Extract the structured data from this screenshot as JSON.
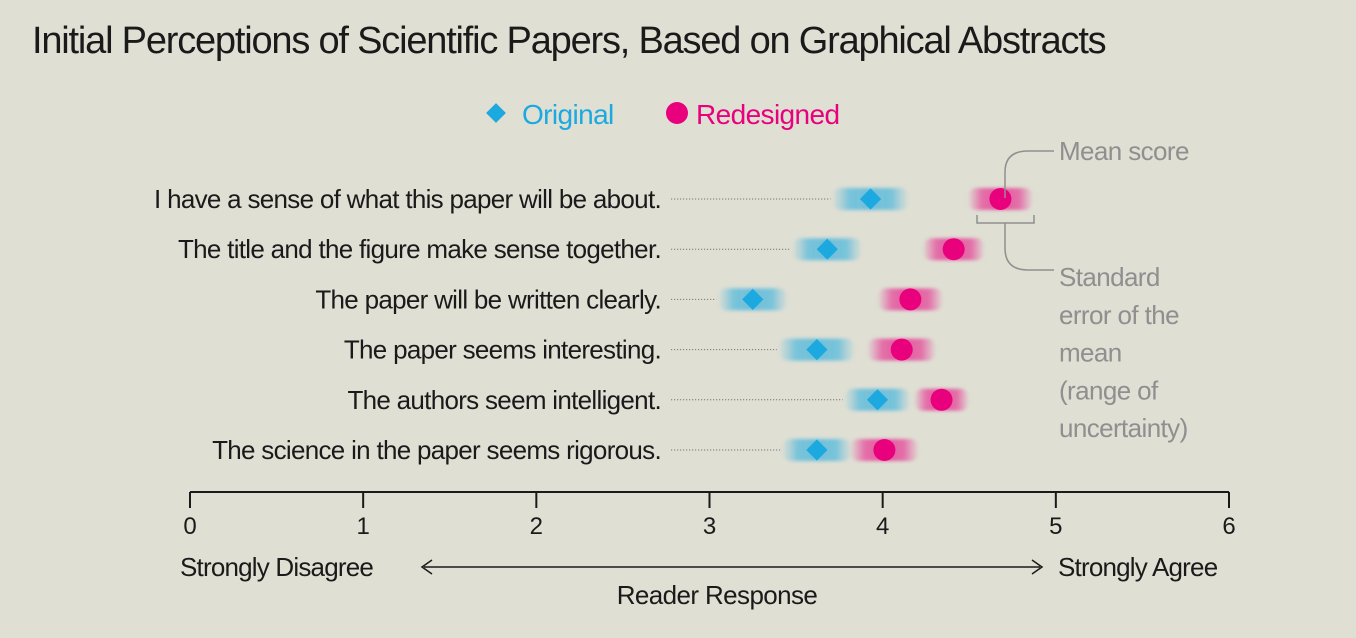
{
  "chart_data": {
    "type": "scatter",
    "title": "Initial Perceptions of Scientific Papers, Based on Graphical Abstracts",
    "xlabel": "Reader Response",
    "xlim": [
      0,
      6
    ],
    "x_ticks": [
      "0",
      "1",
      "2",
      "3",
      "4",
      "5",
      "6"
    ],
    "scale_low_label": "Strongly Disagree",
    "scale_high_label": "Strongly Agree",
    "legend_position": "top-center",
    "categories": [
      "I have a sense of what this paper will be about.",
      "The title and the figure make sense together.",
      "The paper will be written clearly.",
      "The paper seems interesting.",
      "The authors seem intelligent.",
      "The science in the paper seems rigorous."
    ],
    "series": [
      {
        "name": "Original",
        "marker": "diamond",
        "color": "#1ba9e0",
        "values": [
          3.93,
          3.68,
          3.25,
          3.62,
          3.97,
          3.62
        ],
        "se": [
          0.22,
          0.2,
          0.2,
          0.22,
          0.19,
          0.2
        ]
      },
      {
        "name": "Redesigned",
        "marker": "circle",
        "color": "#e8007d",
        "values": [
          4.68,
          4.41,
          4.16,
          4.11,
          4.34,
          4.01
        ],
        "se": [
          0.19,
          0.18,
          0.19,
          0.2,
          0.16,
          0.2
        ]
      }
    ],
    "annotations": {
      "mean_label": "Mean score",
      "se_label_lines": [
        "Standard",
        "error of the",
        "mean",
        "(range of",
        "uncertainty)"
      ]
    }
  }
}
